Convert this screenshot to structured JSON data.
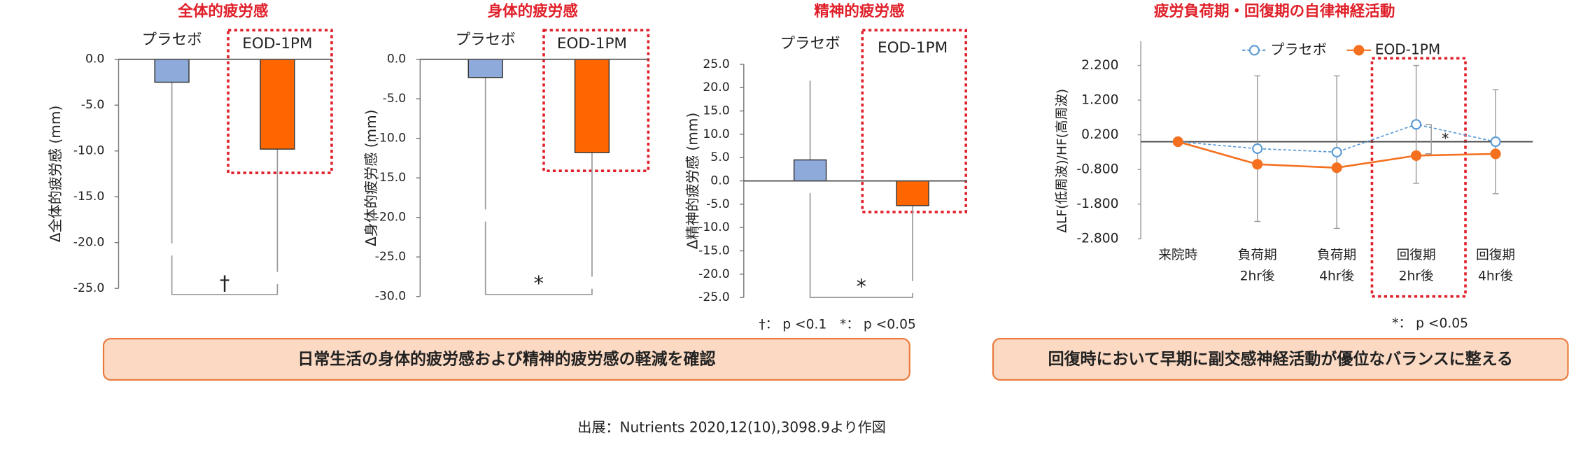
{
  "chart_data": [
    {
      "type": "bar",
      "title": "全体的疲労感",
      "categories": [
        "プラセボ",
        "EOD-1PM"
      ],
      "colors": [
        "#8eaadb",
        "#ff6600"
      ],
      "values": [
        -2.5,
        -9.8
      ],
      "errors": [
        17.6,
        13.4
      ],
      "ylabel": "Δ全体的疲労感 (mm)",
      "ylim": [
        -25,
        0
      ],
      "yticks": [
        {
          "value": 0,
          "label": "0.0"
        },
        {
          "value": -5,
          "label": "-5.0"
        },
        {
          "value": -10,
          "label": "-10.0"
        },
        {
          "value": -15,
          "label": "-15.0"
        },
        {
          "value": -20,
          "label": "-20.0"
        },
        {
          "value": -25,
          "label": "-25.0"
        }
      ],
      "significance": "†"
    },
    {
      "type": "bar",
      "title": "身体的疲労感",
      "categories": [
        "プラセボ",
        "EOD-1PM"
      ],
      "colors": [
        "#8eaadb",
        "#ff6600"
      ],
      "values": [
        -2.3,
        -11.8
      ],
      "errors": [
        16.7,
        15.7
      ],
      "ylabel": "Δ身体的疲労感 (mm)",
      "ylim": [
        -30,
        0
      ],
      "yticks": [
        {
          "value": 0,
          "label": "0.0"
        },
        {
          "value": -5,
          "label": "-5.0"
        },
        {
          "value": -10,
          "label": "-10.0"
        },
        {
          "value": -15,
          "label": "-15.0"
        },
        {
          "value": -20,
          "label": "-20.0"
        },
        {
          "value": -25,
          "label": "-25.0"
        },
        {
          "value": -30,
          "label": "-30.0"
        }
      ],
      "significance": "*"
    },
    {
      "type": "bar",
      "title": "精神的疲労感",
      "categories": [
        "プラセボ",
        "EOD-1PM"
      ],
      "colors": [
        "#8eaadb",
        "#ff6600"
      ],
      "values": [
        4.5,
        -5.3
      ],
      "errors": [
        17.0,
        16.2
      ],
      "ylabel": "Δ精神的疲労感 (mm)",
      "ylim": [
        -25,
        25
      ],
      "yticks": [
        {
          "value": 25,
          "label": "25.0"
        },
        {
          "value": 20,
          "label": "20.0"
        },
        {
          "value": 15,
          "label": "15.0"
        },
        {
          "value": 10,
          "label": "10.0"
        },
        {
          "value": 5,
          "label": "5.0"
        },
        {
          "value": 0,
          "label": "0.0"
        },
        {
          "value": -5,
          "label": "-5.0"
        },
        {
          "value": -10,
          "label": "-10.0"
        },
        {
          "value": -15,
          "label": "-15.0"
        },
        {
          "value": -20,
          "label": "-20.0"
        },
        {
          "value": -25,
          "label": "-25.0"
        }
      ],
      "significance": "*"
    },
    {
      "type": "line",
      "title": "疲労負荷期・回復期の自律神経活動",
      "categories": [
        "来院時",
        "負荷期\n2hr後",
        "負荷期\n4hr後",
        "回復期\n2hr後",
        "回復期\n4hr後"
      ],
      "series": [
        {
          "name": "プラセボ",
          "color": "#5b9bd5",
          "values": [
            0,
            -0.2,
            -0.3,
            0.5,
            0
          ],
          "errors": [
            null,
            2.1,
            2.2,
            1.7,
            1.5
          ]
        },
        {
          "name": "EOD-1PM",
          "color": "#f4701e",
          "values": [
            0,
            -0.65,
            -0.75,
            -0.4,
            -0.35
          ]
        }
      ],
      "ylabel": "ΔLF(低周波)/HF(高周波)",
      "ylim": [
        -2.8,
        2.9
      ],
      "yticks": [
        {
          "value": 2.2,
          "label": "2.200"
        },
        {
          "value": 1.2,
          "label": "1.200"
        },
        {
          "value": 0.2,
          "label": "0.200"
        },
        {
          "value": -0.8,
          "label": "-0.800"
        },
        {
          "value": -1.8,
          "label": "-1.800"
        },
        {
          "value": -2.8,
          "label": "-2.800"
        }
      ],
      "significance": "*",
      "note": "*： p <0.05"
    }
  ],
  "footnote": "†： p <0.1　*： p <0.05",
  "summary": [
    "日常生活の身体的疲労感および精神的疲労感の軽減を確認",
    "回復時において早期に副交感神経活動が優位なバランスに整える"
  ],
  "source": "出展：Nutrients 2020,12(10),3098.9より作図"
}
